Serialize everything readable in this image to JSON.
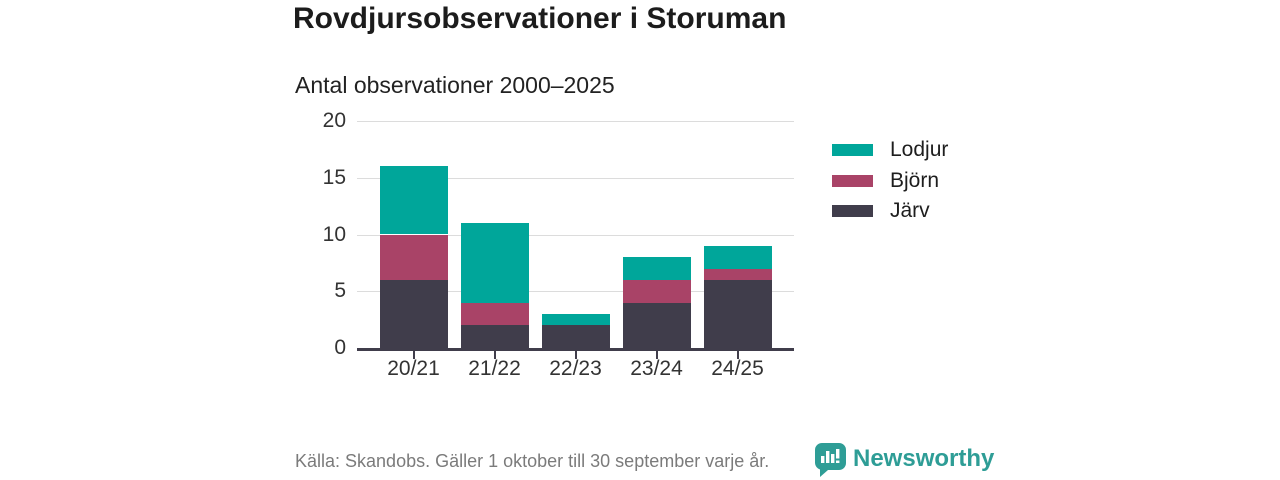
{
  "header": {
    "title": "Rovdjursobservationer i Storuman",
    "subtitle": "Antal observationer 2000–2025"
  },
  "chart_data": {
    "type": "bar",
    "stacked": true,
    "title": "Rovdjursobservationer i Storuman",
    "subtitle": "Antal observationer 2000–2025",
    "xlabel": "",
    "ylabel": "",
    "categories": [
      "20/21",
      "21/22",
      "22/23",
      "23/24",
      "24/25"
    ],
    "series": [
      {
        "name": "Järv",
        "color": "#403d4b",
        "values": [
          6,
          2,
          2,
          4,
          6
        ]
      },
      {
        "name": "Björn",
        "color": "#a94367",
        "values": [
          4,
          2,
          0,
          2,
          1
        ]
      },
      {
        "name": "Lodjur",
        "color": "#00a69a",
        "values": [
          6,
          7,
          1,
          2,
          2
        ]
      }
    ],
    "totals": [
      16,
      11,
      3,
      8,
      9
    ],
    "ylim": [
      0,
      20
    ],
    "yticks": [
      0,
      5,
      10,
      15,
      20
    ],
    "grid": true,
    "legend_position": "right"
  },
  "legend": {
    "items": [
      {
        "label": "Lodjur",
        "color": "#00a69a"
      },
      {
        "label": "Björn",
        "color": "#a94367"
      },
      {
        "label": "Järv",
        "color": "#403d4b"
      }
    ]
  },
  "footer": {
    "source": "Källa: Skandobs. Gäller 1 oktober till 30 september varje år.",
    "brand": "Newsworthy",
    "brand_color": "#2e9d96"
  },
  "colors": {
    "gridline": "#dcdcdc",
    "axis": "#403d4b",
    "text": "#333333"
  }
}
